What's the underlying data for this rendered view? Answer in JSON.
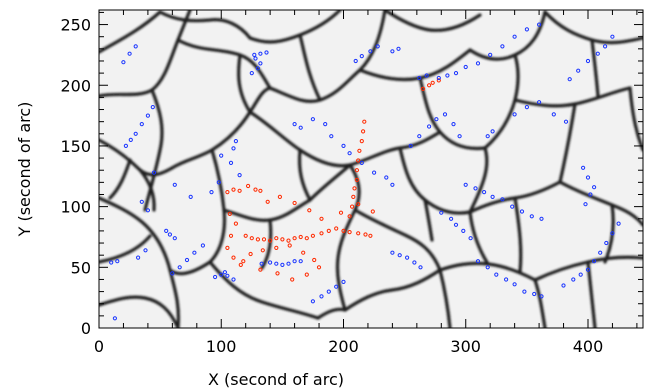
{
  "chart_data": {
    "type": "scatter",
    "title": "",
    "xlabel": "X (second of arc)",
    "ylabel": "Y (second of arc)",
    "xlim": [
      0,
      445
    ],
    "ylim": [
      0,
      262
    ],
    "grid": false,
    "x_ticks": [
      0,
      100,
      200,
      300,
      400
    ],
    "y_ticks": [
      0,
      50,
      100,
      150,
      200,
      250
    ],
    "x_tick_labels": [
      "0",
      "100",
      "200",
      "300",
      "400"
    ],
    "y_tick_labels": [
      "0",
      "50",
      "100",
      "150",
      "200",
      "250"
    ],
    "background": "grayscale supergranular network map (white cells with dark boundaries)",
    "series": [
      {
        "color": "#ff2a00",
        "marker": "small open circle",
        "points": [
          [
            105,
            112
          ],
          [
            110,
            114
          ],
          [
            115,
            113
          ],
          [
            122,
            117
          ],
          [
            128,
            114
          ],
          [
            132,
            113
          ],
          [
            120,
            76
          ],
          [
            125,
            74
          ],
          [
            130,
            73
          ],
          [
            135,
            73
          ],
          [
            140,
            72
          ],
          [
            145,
            74
          ],
          [
            150,
            73
          ],
          [
            155,
            72
          ],
          [
            160,
            74
          ],
          [
            165,
            75
          ],
          [
            170,
            74
          ],
          [
            175,
            76
          ],
          [
            182,
            78
          ],
          [
            188,
            80
          ],
          [
            194,
            82
          ],
          [
            200,
            80
          ],
          [
            205,
            79
          ],
          [
            212,
            78
          ],
          [
            218,
            77
          ],
          [
            222,
            76
          ],
          [
            205,
            92
          ],
          [
            207,
            100
          ],
          [
            208,
            108
          ],
          [
            209,
            115
          ],
          [
            211,
            122
          ],
          [
            211,
            130
          ],
          [
            212,
            138
          ],
          [
            213,
            146
          ],
          [
            215,
            154
          ],
          [
            216,
            162
          ],
          [
            217,
            170
          ],
          [
            265,
            197
          ],
          [
            270,
            200
          ],
          [
            273,
            202
          ],
          [
            278,
            204
          ],
          [
            107,
            94
          ],
          [
            112,
            86
          ],
          [
            108,
            76
          ],
          [
            105,
            66
          ],
          [
            110,
            58
          ],
          [
            116,
            52
          ],
          [
            124,
            61
          ],
          [
            134,
            64
          ],
          [
            145,
            66
          ],
          [
            156,
            68
          ],
          [
            167,
            62
          ],
          [
            176,
            56
          ],
          [
            180,
            50
          ],
          [
            170,
            44
          ],
          [
            158,
            40
          ],
          [
            146,
            45
          ],
          [
            132,
            48
          ],
          [
            118,
            55
          ],
          [
            138,
            104
          ],
          [
            148,
            108
          ],
          [
            160,
            103
          ],
          [
            172,
            97
          ],
          [
            182,
            90
          ],
          [
            198,
            95
          ],
          [
            212,
            102
          ],
          [
            224,
            96
          ]
        ]
      },
      {
        "color": "#1a35ff",
        "marker": "small open circle",
        "points": [
          [
            13,
            8
          ],
          [
            20,
            219
          ],
          [
            25,
            226
          ],
          [
            30,
            232
          ],
          [
            45,
            128
          ],
          [
            62,
            118
          ],
          [
            75,
            108
          ],
          [
            35,
            104
          ],
          [
            40,
            97
          ],
          [
            55,
            80
          ],
          [
            58,
            77
          ],
          [
            62,
            74
          ],
          [
            38,
            64
          ],
          [
            32,
            58
          ],
          [
            15,
            55
          ],
          [
            10,
            54
          ],
          [
            95,
            42
          ],
          [
            100,
            44
          ],
          [
            105,
            43
          ],
          [
            110,
            40
          ],
          [
            103,
            46
          ],
          [
            133,
            53
          ],
          [
            140,
            54
          ],
          [
            145,
            53
          ],
          [
            150,
            52
          ],
          [
            155,
            53
          ],
          [
            160,
            55
          ],
          [
            165,
            55
          ],
          [
            110,
            148
          ],
          [
            112,
            154
          ],
          [
            100,
            142
          ],
          [
            108,
            136
          ],
          [
            115,
            126
          ],
          [
            98,
            120
          ],
          [
            92,
            112
          ],
          [
            125,
            210
          ],
          [
            130,
            214
          ],
          [
            132,
            218
          ],
          [
            128,
            222
          ],
          [
            127,
            225
          ],
          [
            132,
            226
          ],
          [
            137,
            227
          ],
          [
            160,
            168
          ],
          [
            165,
            165
          ],
          [
            175,
            172
          ],
          [
            185,
            168
          ],
          [
            190,
            158
          ],
          [
            200,
            150
          ],
          [
            205,
            144
          ],
          [
            215,
            136
          ],
          [
            225,
            128
          ],
          [
            235,
            124
          ],
          [
            240,
            118
          ],
          [
            210,
            220
          ],
          [
            215,
            224
          ],
          [
            222,
            228
          ],
          [
            228,
            232
          ],
          [
            240,
            228
          ],
          [
            245,
            230
          ],
          [
            262,
            206
          ],
          [
            268,
            208
          ],
          [
            278,
            206
          ],
          [
            285,
            208
          ],
          [
            292,
            210
          ],
          [
            300,
            215
          ],
          [
            310,
            218
          ],
          [
            320,
            225
          ],
          [
            330,
            232
          ],
          [
            340,
            240
          ],
          [
            350,
            246
          ],
          [
            360,
            250
          ],
          [
            318,
            158
          ],
          [
            322,
            162
          ],
          [
            340,
            176
          ],
          [
            350,
            182
          ],
          [
            360,
            186
          ],
          [
            372,
            176
          ],
          [
            382,
            170
          ],
          [
            300,
            118
          ],
          [
            308,
            115
          ],
          [
            315,
            112
          ],
          [
            322,
            108
          ],
          [
            330,
            106
          ],
          [
            338,
            100
          ],
          [
            346,
            96
          ],
          [
            354,
            92
          ],
          [
            362,
            90
          ],
          [
            310,
            55
          ],
          [
            318,
            50
          ],
          [
            325,
            44
          ],
          [
            333,
            40
          ],
          [
            340,
            36
          ],
          [
            348,
            30
          ],
          [
            356,
            28
          ],
          [
            362,
            26
          ],
          [
            380,
            35
          ],
          [
            388,
            40
          ],
          [
            394,
            44
          ],
          [
            400,
            48
          ],
          [
            405,
            55
          ],
          [
            410,
            62
          ],
          [
            415,
            70
          ],
          [
            420,
            78
          ],
          [
            425,
            86
          ],
          [
            398,
            102
          ],
          [
            402,
            110
          ],
          [
            405,
            116
          ],
          [
            400,
            124
          ],
          [
            396,
            132
          ],
          [
            385,
            205
          ],
          [
            392,
            212
          ],
          [
            400,
            220
          ],
          [
            408,
            226
          ],
          [
            414,
            232
          ],
          [
            420,
            240
          ],
          [
            255,
            150
          ],
          [
            262,
            158
          ],
          [
            270,
            166
          ],
          [
            276,
            172
          ],
          [
            283,
            176
          ],
          [
            290,
            168
          ],
          [
            295,
            158
          ],
          [
            280,
            95
          ],
          [
            288,
            90
          ],
          [
            292,
            85
          ],
          [
            298,
            80
          ],
          [
            304,
            74
          ],
          [
            240,
            62
          ],
          [
            246,
            60
          ],
          [
            252,
            58
          ],
          [
            258,
            54
          ],
          [
            263,
            50
          ],
          [
            175,
            22
          ],
          [
            182,
            26
          ],
          [
            188,
            30
          ],
          [
            194,
            34
          ],
          [
            200,
            38
          ],
          [
            60,
            45
          ],
          [
            66,
            50
          ],
          [
            72,
            56
          ],
          [
            78,
            62
          ],
          [
            85,
            68
          ],
          [
            22,
            150
          ],
          [
            26,
            155
          ],
          [
            30,
            160
          ],
          [
            35,
            168
          ],
          [
            40,
            175
          ],
          [
            44,
            182
          ]
        ]
      }
    ]
  }
}
